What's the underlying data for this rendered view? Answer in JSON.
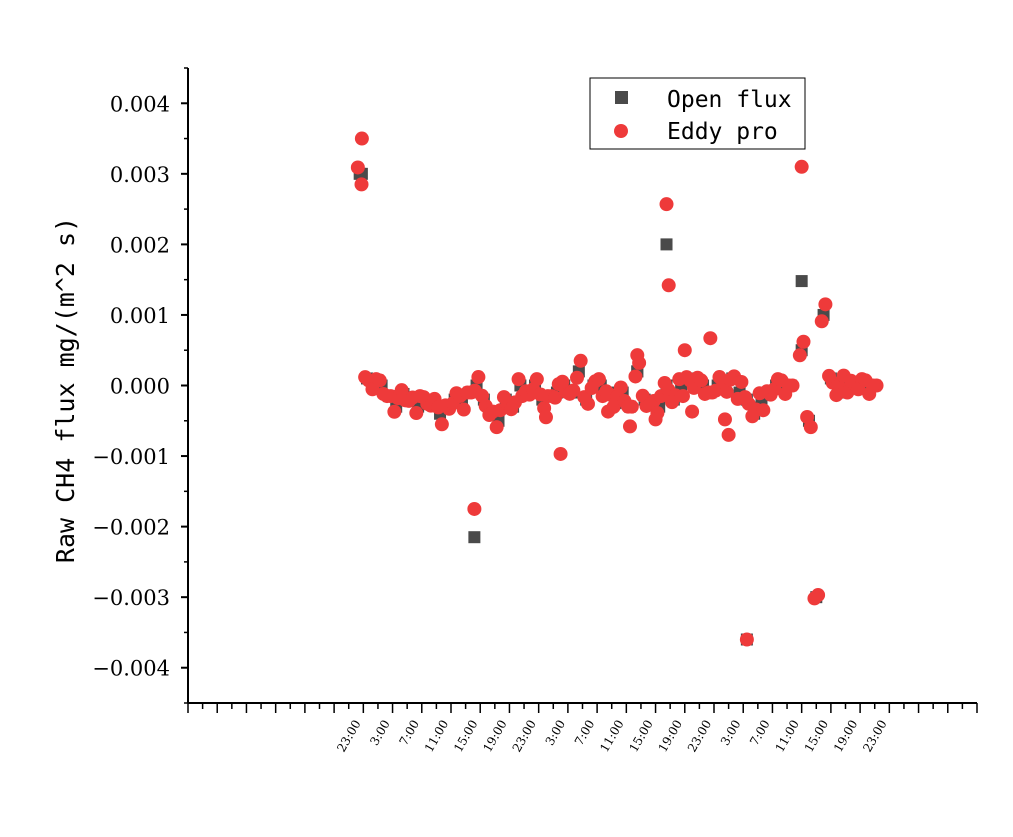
{
  "chart_data": {
    "type": "scatter",
    "title": "",
    "ylabel": "Raw CH4 flux mg/(m^2 s)",
    "xlabel": "",
    "ylim": [
      -0.0045,
      0.0045
    ],
    "x_unit": "hour index (30-min records)",
    "xlim": [
      -24,
      84
    ],
    "y_ticks": [
      {
        "value": 0.004,
        "label": "0.004"
      },
      {
        "value": 0.003,
        "label": "0.003"
      },
      {
        "value": 0.002,
        "label": "0.002"
      },
      {
        "value": 0.001,
        "label": "0.001"
      },
      {
        "value": 0.0,
        "label": "0.000"
      },
      {
        "value": -0.001,
        "label": "-0.001"
      },
      {
        "value": -0.002,
        "label": "-0.002"
      },
      {
        "value": -0.003,
        "label": "-0.003"
      },
      {
        "value": -0.004,
        "label": "-0.004"
      }
    ],
    "x_ticks": [
      {
        "x": -1,
        "label": "23:00"
      },
      {
        "x": 3,
        "label": "3:00"
      },
      {
        "x": 7,
        "label": "7:00"
      },
      {
        "x": 11,
        "label": "11:00"
      },
      {
        "x": 15,
        "label": "15:00"
      },
      {
        "x": 19,
        "label": "19:00"
      },
      {
        "x": 23,
        "label": "23:00"
      },
      {
        "x": 27,
        "label": "3:00"
      },
      {
        "x": 31,
        "label": "7:00"
      },
      {
        "x": 35,
        "label": "11:00"
      },
      {
        "x": 39,
        "label": "15:00"
      },
      {
        "x": 43,
        "label": "19:00"
      },
      {
        "x": 47,
        "label": "23:00"
      },
      {
        "x": 51,
        "label": "3:00"
      },
      {
        "x": 55,
        "label": "7:00"
      },
      {
        "x": 59,
        "label": "11:00"
      },
      {
        "x": 63,
        "label": "15:00"
      },
      {
        "x": 67,
        "label": "19:00"
      },
      {
        "x": 71,
        "label": "23:00"
      }
    ],
    "legend": {
      "position": "top-right",
      "entries": [
        "Open flux",
        "Eddy pro"
      ]
    },
    "grid": false,
    "series": [
      {
        "name": "Open flux",
        "marker": "square",
        "color": "#4a4a4a",
        "points": [
          [
            -0.5,
            0.003
          ],
          [
            0.5,
            0.0001
          ],
          [
            1.5,
            0.0
          ],
          [
            2.5,
            0.0
          ],
          [
            3.5,
            -0.00015
          ],
          [
            4.5,
            -0.0003
          ],
          [
            5.5,
            -0.00012
          ],
          [
            6.5,
            -0.0002
          ],
          [
            7.5,
            -0.0003
          ],
          [
            8.5,
            -0.0002
          ],
          [
            9.5,
            -0.00025
          ],
          [
            10.5,
            -0.0004
          ],
          [
            11.5,
            -0.0003
          ],
          [
            12.5,
            -0.0002
          ],
          [
            13.5,
            -0.00022
          ],
          [
            14.5,
            -0.0001
          ],
          [
            15.5,
            0.0
          ],
          [
            16.5,
            -0.0002
          ],
          [
            17.5,
            -0.0004
          ],
          [
            18.5,
            -0.0005
          ],
          [
            19.5,
            -0.0002
          ],
          [
            20.5,
            -0.0003
          ],
          [
            21.5,
            0.0
          ],
          [
            22.5,
            -0.0001
          ],
          [
            23.5,
            0.0
          ],
          [
            24.5,
            -0.0002
          ],
          [
            25.5,
            -0.00015
          ],
          [
            26.5,
            -0.0001
          ],
          [
            27.5,
            0.0
          ],
          [
            28.5,
            -0.0001
          ],
          [
            29.5,
            0.0002
          ],
          [
            30.5,
            -0.0002
          ],
          [
            31.5,
            0.0
          ],
          [
            32.5,
            0.0
          ],
          [
            33.5,
            -0.0001
          ],
          [
            34.5,
            -0.00025
          ],
          [
            35.5,
            -0.0001
          ],
          [
            36.5,
            -0.0003
          ],
          [
            37.5,
            0.0002
          ],
          [
            38.5,
            -0.0002
          ],
          [
            39.5,
            -0.00025
          ],
          [
            40.5,
            -0.0003
          ],
          [
            41.5,
            0.0
          ],
          [
            42.5,
            -0.0002
          ],
          [
            43.5,
            0.0
          ],
          [
            44.5,
            0.0001
          ],
          [
            45.5,
            2e-05
          ],
          [
            46.5,
            0.0
          ],
          [
            47.5,
            -0.0001
          ],
          [
            48.5,
            0.0
          ],
          [
            49.5,
            0.0
          ],
          [
            50.5,
            0.0001
          ],
          [
            51.5,
            -0.0001
          ],
          [
            52.5,
            -0.0002
          ],
          [
            53.5,
            -0.0004
          ],
          [
            54.5,
            -0.0002
          ],
          [
            55.5,
            -0.0001
          ],
          [
            56.5,
            0.0
          ],
          [
            57.5,
            0.0
          ],
          [
            58.5,
            0.0
          ],
          [
            60,
            0.0005
          ],
          [
            61,
            -0.0005
          ],
          [
            62,
            -0.003
          ],
          [
            63,
            0.001
          ],
          [
            64,
            0.0001
          ],
          [
            65,
            -0.0001
          ],
          [
            66,
            5e-05
          ],
          [
            67,
            5e-05
          ],
          [
            68,
            0.0
          ],
          [
            69,
            0.0
          ],
          [
            70,
            0.0
          ]
        ],
        "outliers": [
          [
            -0.2,
            0.003
          ],
          [
            15.2,
            -0.00215
          ],
          [
            37.5,
            0.0002
          ],
          [
            41.5,
            0.002
          ],
          [
            52.5,
            -0.0036
          ],
          [
            60,
            0.00148
          ]
        ]
      },
      {
        "name": "Eddy pro",
        "marker": "circle",
        "color": "#ee3a3a",
        "outliers": [
          [
            -0.2,
            0.0035
          ],
          [
            15.2,
            -0.00175
          ],
          [
            37.5,
            0.00043
          ],
          [
            41.5,
            0.00257
          ],
          [
            41.8,
            0.00142
          ],
          [
            52.5,
            -0.0036
          ],
          [
            60,
            0.0031
          ],
          [
            44,
            0.0005
          ],
          [
            47.5,
            0.00067
          ],
          [
            36.5,
            -0.00058
          ],
          [
            40,
            -0.00048
          ],
          [
            25,
            -0.00045
          ],
          [
            27,
            -0.00097
          ],
          [
            33.5,
            -0.00037
          ],
          [
            50,
            -0.0007
          ],
          [
            49.5,
            -0.00048
          ],
          [
            45,
            -0.00037
          ]
        ]
      }
    ]
  }
}
